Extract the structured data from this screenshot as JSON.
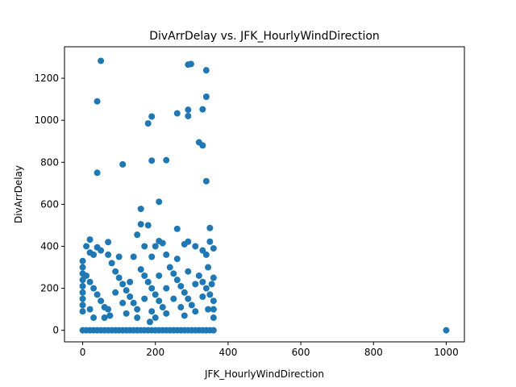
{
  "chart_data": {
    "type": "scatter",
    "title": "DivArrDelay vs. JFK_HourlyWindDirection",
    "x_label": "JFK_HourlyWindDirection",
    "y_label": "DivArrDelay",
    "color": "#1f77b4",
    "xlim": [
      -50,
      1050
    ],
    "ylim": [
      -55,
      1350
    ],
    "xticks": [
      0,
      200,
      400,
      600,
      800,
      1000
    ],
    "yticks": [
      0,
      200,
      400,
      600,
      800,
      1000,
      1200
    ],
    "x": [
      50,
      290,
      298,
      340,
      40,
      340,
      290,
      330,
      260,
      290,
      190,
      180,
      320,
      330,
      40,
      110,
      190,
      230,
      340,
      210,
      160,
      160,
      180,
      260,
      350,
      20,
      350,
      290,
      280,
      310,
      210,
      220,
      200,
      10,
      40,
      70,
      150,
      170,
      50,
      20,
      30,
      70,
      100,
      140,
      190,
      230,
      260,
      330,
      340,
      360,
      0,
      0,
      0,
      0,
      0,
      0,
      0,
      0,
      0,
      10,
      20,
      30,
      40,
      50,
      60,
      80,
      90,
      100,
      110,
      120,
      130,
      140,
      150,
      160,
      170,
      180,
      190,
      200,
      210,
      220,
      230,
      240,
      250,
      260,
      270,
      280,
      290,
      300,
      310,
      320,
      330,
      340,
      350,
      360,
      360,
      360,
      360,
      355,
      345,
      20,
      60,
      70,
      90,
      110,
      130,
      150,
      170,
      190,
      210,
      230,
      250,
      270,
      290,
      310,
      330,
      30,
      120,
      200,
      280,
      345,
      185,
      75,
      0,
      10,
      20,
      30,
      40,
      50,
      60,
      70,
      80,
      90,
      100,
      110,
      120,
      130,
      140,
      150,
      160,
      170,
      180,
      190,
      200,
      210,
      220,
      230,
      240,
      250,
      260,
      270,
      280,
      290,
      300,
      310,
      320,
      330,
      340,
      350,
      360,
      1000
    ],
    "values": [
      1283,
      1265,
      1268,
      1238,
      1090,
      1112,
      1050,
      1052,
      1033,
      1020,
      1018,
      985,
      895,
      880,
      750,
      790,
      808,
      810,
      710,
      612,
      578,
      505,
      500,
      483,
      487,
      432,
      422,
      422,
      410,
      400,
      425,
      415,
      400,
      400,
      395,
      420,
      455,
      400,
      380,
      370,
      360,
      360,
      350,
      350,
      350,
      360,
      340,
      380,
      360,
      390,
      330,
      300,
      270,
      240,
      210,
      180,
      150,
      120,
      90,
      260,
      230,
      200,
      170,
      140,
      110,
      320,
      280,
      250,
      220,
      190,
      160,
      130,
      100,
      290,
      260,
      230,
      200,
      170,
      140,
      110,
      80,
      300,
      270,
      240,
      210,
      180,
      150,
      120,
      90,
      260,
      230,
      200,
      170,
      140,
      100,
      60,
      250,
      220,
      300,
      100,
      60,
      100,
      180,
      130,
      230,
      60,
      150,
      90,
      260,
      200,
      150,
      110,
      280,
      220,
      160,
      60,
      80,
      60,
      70,
      100,
      40,
      70,
      0,
      0,
      0,
      0,
      0,
      0,
      0,
      0,
      0,
      0,
      0,
      0,
      0,
      0,
      0,
      0,
      0,
      0,
      0,
      0,
      0,
      0,
      0,
      0,
      0,
      0,
      0,
      0,
      0,
      0,
      0,
      0,
      0,
      0,
      0,
      0,
      0,
      0
    ]
  }
}
